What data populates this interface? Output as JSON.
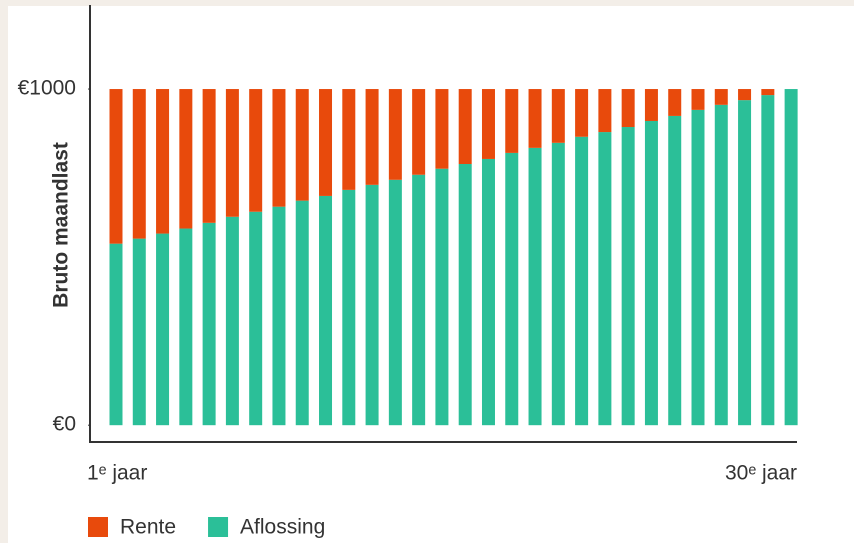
{
  "chart_data": {
    "type": "stacked_bar",
    "y_label": "Bruto maandlast",
    "categories": [
      "1ᵉ jaar",
      null,
      null,
      null,
      null,
      null,
      null,
      null,
      null,
      null,
      null,
      null,
      null,
      null,
      null,
      null,
      null,
      null,
      null,
      null,
      null,
      null,
      null,
      null,
      null,
      null,
      null,
      null,
      null,
      "30ᵉ jaar"
    ],
    "series": [
      {
        "name": "Aflossing",
        "color": "#2bbf98",
        "values": [
          540,
          555,
          570,
          585,
          602,
          620,
          635,
          650,
          668,
          682,
          700,
          715,
          730,
          745,
          763,
          777,
          792,
          810,
          825,
          840,
          858,
          872,
          887,
          905,
          920,
          938,
          953,
          967,
          982,
          1000
        ]
      },
      {
        "name": "Rente",
        "color": "#e84a0c",
        "values": [
          460,
          445,
          430,
          415,
          398,
          380,
          365,
          350,
          332,
          318,
          300,
          285,
          270,
          255,
          237,
          223,
          208,
          190,
          175,
          160,
          142,
          128,
          113,
          95,
          80,
          62,
          47,
          33,
          18,
          0
        ]
      }
    ],
    "ylim": [
      -50,
      1250
    ],
    "yticks": [
      {
        "value": 0,
        "label": "€0"
      },
      {
        "value": 1000,
        "label": "€1000"
      }
    ],
    "legend": "bottom-left"
  }
}
